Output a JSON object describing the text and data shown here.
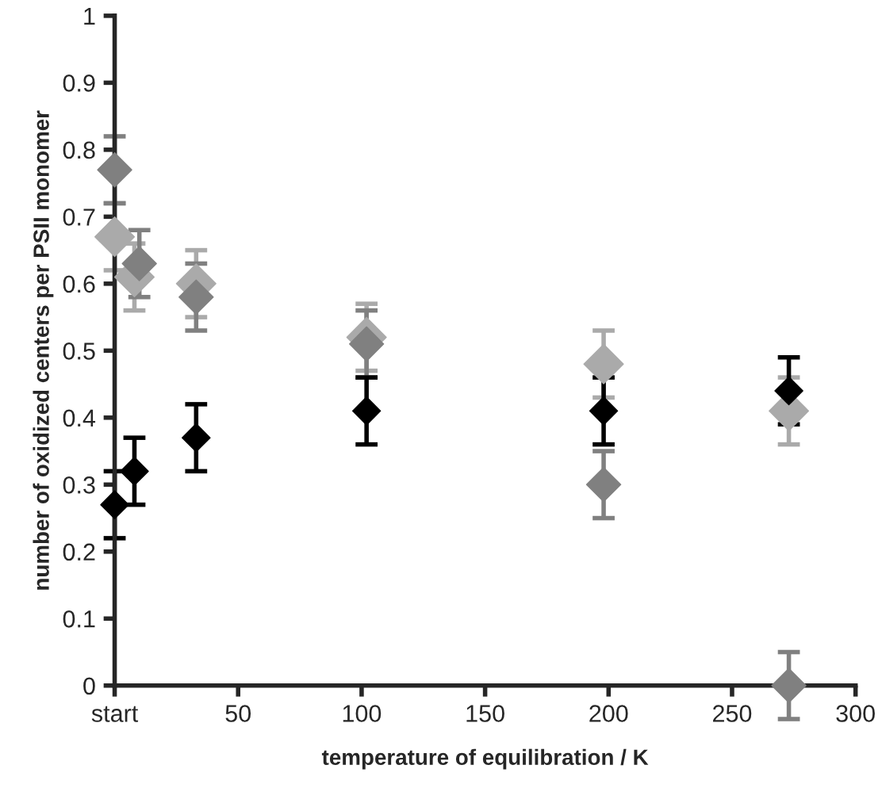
{
  "chart_data": {
    "type": "scatter",
    "xlabel": "temperature of equilibration / K",
    "ylabel": "number of oxidized centers per PSII monomer",
    "xlim": [
      0,
      300
    ],
    "xticks": [
      {
        "value": 0,
        "label": "start"
      },
      50,
      100,
      150,
      200,
      250,
      300
    ],
    "ylim": [
      0,
      1
    ],
    "yticks": [
      0,
      0.1,
      0.2,
      0.3,
      0.4,
      0.5,
      0.6,
      0.7,
      0.8,
      0.9,
      1
    ],
    "grid": false,
    "legend": false,
    "marker": "diamond",
    "series": [
      {
        "color": "#aaaaaa",
        "x": [
          0,
          8,
          33,
          102,
          198,
          273
        ],
        "values": [
          0.67,
          0.61,
          0.6,
          0.52,
          0.48,
          0.41
        ],
        "errors": [
          0.05,
          0.05,
          0.05,
          0.05,
          0.05,
          0.05
        ]
      },
      {
        "color": "#808080",
        "x": [
          0,
          10,
          33,
          102,
          198,
          273
        ],
        "values": [
          0.77,
          0.63,
          0.58,
          0.51,
          0.3,
          0.0
        ],
        "errors": [
          0.05,
          0.05,
          0.05,
          0.05,
          0.05,
          0.05
        ]
      },
      {
        "color": "#000000",
        "x": [
          0,
          8,
          33,
          102,
          198,
          273
        ],
        "values": [
          0.27,
          0.32,
          0.37,
          0.41,
          0.41,
          0.44
        ],
        "errors": [
          0.05,
          0.05,
          0.05,
          0.05,
          0.05,
          0.05
        ]
      }
    ]
  }
}
